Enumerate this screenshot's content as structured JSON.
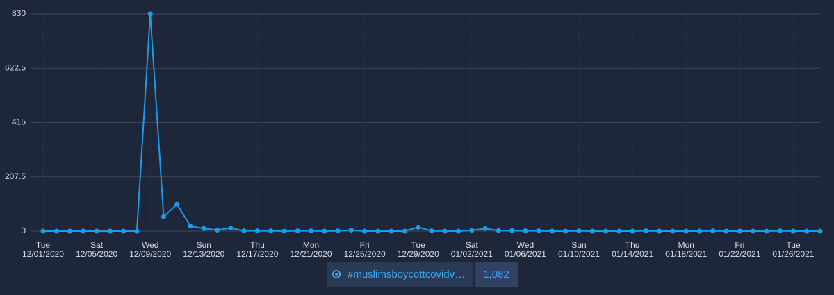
{
  "chart_data": {
    "type": "line",
    "x": [
      "12/01/2020",
      "12/02/2020",
      "12/03/2020",
      "12/04/2020",
      "12/05/2020",
      "12/06/2020",
      "12/07/2020",
      "12/08/2020",
      "12/09/2020",
      "12/10/2020",
      "12/11/2020",
      "12/12/2020",
      "12/13/2020",
      "12/14/2020",
      "12/15/2020",
      "12/16/2020",
      "12/17/2020",
      "12/18/2020",
      "12/19/2020",
      "12/20/2020",
      "12/21/2020",
      "12/22/2020",
      "12/23/2020",
      "12/24/2020",
      "12/25/2020",
      "12/26/2020",
      "12/27/2020",
      "12/28/2020",
      "12/29/2020",
      "12/30/2020",
      "12/31/2020",
      "01/01/2021",
      "01/02/2021",
      "01/03/2021",
      "01/04/2021",
      "01/05/2021",
      "01/06/2021",
      "01/07/2021",
      "01/08/2021",
      "01/09/2021",
      "01/10/2021",
      "01/11/2021",
      "01/12/2021",
      "01/13/2021",
      "01/14/2021",
      "01/15/2021",
      "01/16/2021",
      "01/17/2021",
      "01/18/2021",
      "01/19/2021",
      "01/20/2021",
      "01/21/2021",
      "01/22/2021",
      "01/23/2021",
      "01/24/2021",
      "01/25/2021",
      "01/26/2021",
      "01/27/2021",
      "01/28/2021"
    ],
    "series": [
      {
        "name": "#muslimsboycottcovidv…",
        "color": "#1e9be9",
        "values": [
          0,
          0,
          0,
          0,
          0,
          0,
          0,
          0,
          830,
          55,
          103,
          19,
          10,
          4,
          12,
          1,
          1,
          1,
          0,
          1,
          1,
          0,
          1,
          4,
          0,
          0,
          0,
          0,
          15,
          1,
          0,
          0,
          3,
          10,
          2,
          2,
          1,
          1,
          0,
          0,
          1,
          0,
          0,
          0,
          0,
          1,
          0,
          0,
          0,
          0,
          1,
          0,
          0,
          0,
          0,
          1,
          0,
          0,
          0
        ],
        "total": {
          "value": 1082,
          "label": "1,082"
        }
      }
    ],
    "xticks": [
      {
        "value": "12/01/2020",
        "weekday": "Tue"
      },
      {
        "value": "12/05/2020",
        "weekday": "Sat"
      },
      {
        "value": "12/09/2020",
        "weekday": "Wed"
      },
      {
        "value": "12/13/2020",
        "weekday": "Sun"
      },
      {
        "value": "12/17/2020",
        "weekday": "Thu"
      },
      {
        "value": "12/21/2020",
        "weekday": "Mon"
      },
      {
        "value": "12/25/2020",
        "weekday": "Fri"
      },
      {
        "value": "12/29/2020",
        "weekday": "Tue"
      },
      {
        "value": "01/02/2021",
        "weekday": "Sat"
      },
      {
        "value": "01/06/2021",
        "weekday": "Wed"
      },
      {
        "value": "01/10/2021",
        "weekday": "Sun"
      },
      {
        "value": "01/14/2021",
        "weekday": "Thu"
      },
      {
        "value": "01/18/2021",
        "weekday": "Mon"
      },
      {
        "value": "01/22/2021",
        "weekday": "Fri"
      },
      {
        "value": "01/26/2021",
        "weekday": "Tue"
      }
    ],
    "ylim": [
      0,
      830
    ],
    "yticks": [
      0,
      207.5,
      415,
      622.5,
      830
    ],
    "grid": true
  }
}
